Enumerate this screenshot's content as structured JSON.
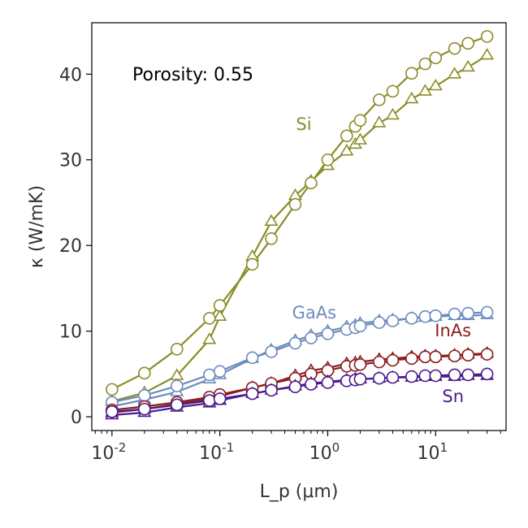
{
  "chart_data": {
    "type": "line",
    "annotation": "Porosity: 0.55",
    "xlabel": "L_p (μm)",
    "ylabel": "κ (W/mK)",
    "xscale": "log",
    "xlim": [
      0.0065,
      45
    ],
    "ylim": [
      -1.6,
      46
    ],
    "grid": false,
    "legend": "inline labels",
    "x_ticks": [
      {
        "base": "10",
        "exp": "-2",
        "value": 0.01
      },
      {
        "base": "10",
        "exp": "-1",
        "value": 0.1
      },
      {
        "base": "10",
        "exp": "0",
        "value": 1
      },
      {
        "base": "10",
        "exp": "1",
        "value": 10
      }
    ],
    "y_ticks": [
      {
        "label": "0",
        "value": 0
      },
      {
        "label": "10",
        "value": 10
      },
      {
        "label": "20",
        "value": 20
      },
      {
        "label": "30",
        "value": 30
      },
      {
        "label": "40",
        "value": 40
      }
    ],
    "x": [
      0.01,
      0.02,
      0.04,
      0.08,
      0.1,
      0.2,
      0.3,
      0.5,
      0.7,
      1.0,
      1.5,
      1.8,
      2.0,
      3.0,
      4.0,
      6.0,
      8.0,
      10.0,
      15.0,
      20.0,
      30.0
    ],
    "series": [
      {
        "name": "Si",
        "color": "#8c8c2a",
        "label_at": [
          0.6,
          33.5
        ],
        "circle": [
          3.2,
          5.1,
          7.9,
          11.5,
          13.0,
          17.8,
          20.8,
          24.8,
          27.3,
          30.0,
          32.8,
          33.9,
          34.6,
          37.0,
          38.0,
          40.1,
          41.2,
          41.9,
          43.0,
          43.6,
          44.4
        ],
        "triangle": [
          1.8,
          2.8,
          4.8,
          9.0,
          11.7,
          18.7,
          22.8,
          25.8,
          27.5,
          29.3,
          31.0,
          31.8,
          32.3,
          34.3,
          35.2,
          37.1,
          38.0,
          38.6,
          40.0,
          40.8,
          42.2
        ]
      },
      {
        "name": "GaAs",
        "color": "#6d8bbd",
        "label_at": [
          0.75,
          11.5
        ],
        "circle": [
          1.7,
          2.5,
          3.6,
          4.9,
          5.3,
          6.9,
          7.6,
          8.6,
          9.2,
          9.7,
          10.2,
          10.4,
          10.6,
          11.0,
          11.2,
          11.5,
          11.7,
          11.8,
          12.0,
          12.1,
          12.2
        ],
        "triangle": [
          1.2,
          2.0,
          2.9,
          4.4,
          4.9,
          6.8,
          7.8,
          8.9,
          9.5,
          10.0,
          10.5,
          10.7,
          10.9,
          11.2,
          11.3,
          11.5,
          11.6,
          11.7,
          11.8,
          11.8,
          11.9
        ]
      },
      {
        "name": "InAs",
        "color": "#8b1c1c",
        "label_at": [
          14.5,
          9.4
        ],
        "circle": [
          0.8,
          1.2,
          1.7,
          2.3,
          2.6,
          3.4,
          3.9,
          4.5,
          5.0,
          5.4,
          5.9,
          6.0,
          6.1,
          6.4,
          6.6,
          6.8,
          7.0,
          7.0,
          7.1,
          7.2,
          7.3
        ],
        "triangle": [
          0.5,
          0.9,
          1.5,
          2.1,
          2.4,
          3.4,
          3.9,
          4.8,
          5.4,
          5.7,
          6.2,
          6.3,
          6.4,
          6.7,
          6.8,
          7.0,
          7.1,
          7.1,
          7.2,
          7.3,
          7.4
        ]
      },
      {
        "name": "Sn",
        "color": "#4b1b8c",
        "label_at": [
          14.5,
          1.7
        ],
        "circle": [
          0.6,
          0.9,
          1.4,
          1.9,
          2.1,
          2.7,
          3.1,
          3.5,
          3.8,
          4.0,
          4.2,
          4.3,
          4.4,
          4.5,
          4.6,
          4.7,
          4.8,
          4.8,
          4.9,
          4.9,
          5.0
        ],
        "triangle": [
          0.2,
          0.5,
          1.1,
          1.6,
          1.9,
          2.7,
          3.1,
          3.6,
          3.9,
          4.1,
          4.3,
          4.4,
          4.4,
          4.5,
          4.6,
          4.6,
          4.7,
          4.7,
          4.7,
          4.8,
          4.8
        ]
      }
    ]
  }
}
